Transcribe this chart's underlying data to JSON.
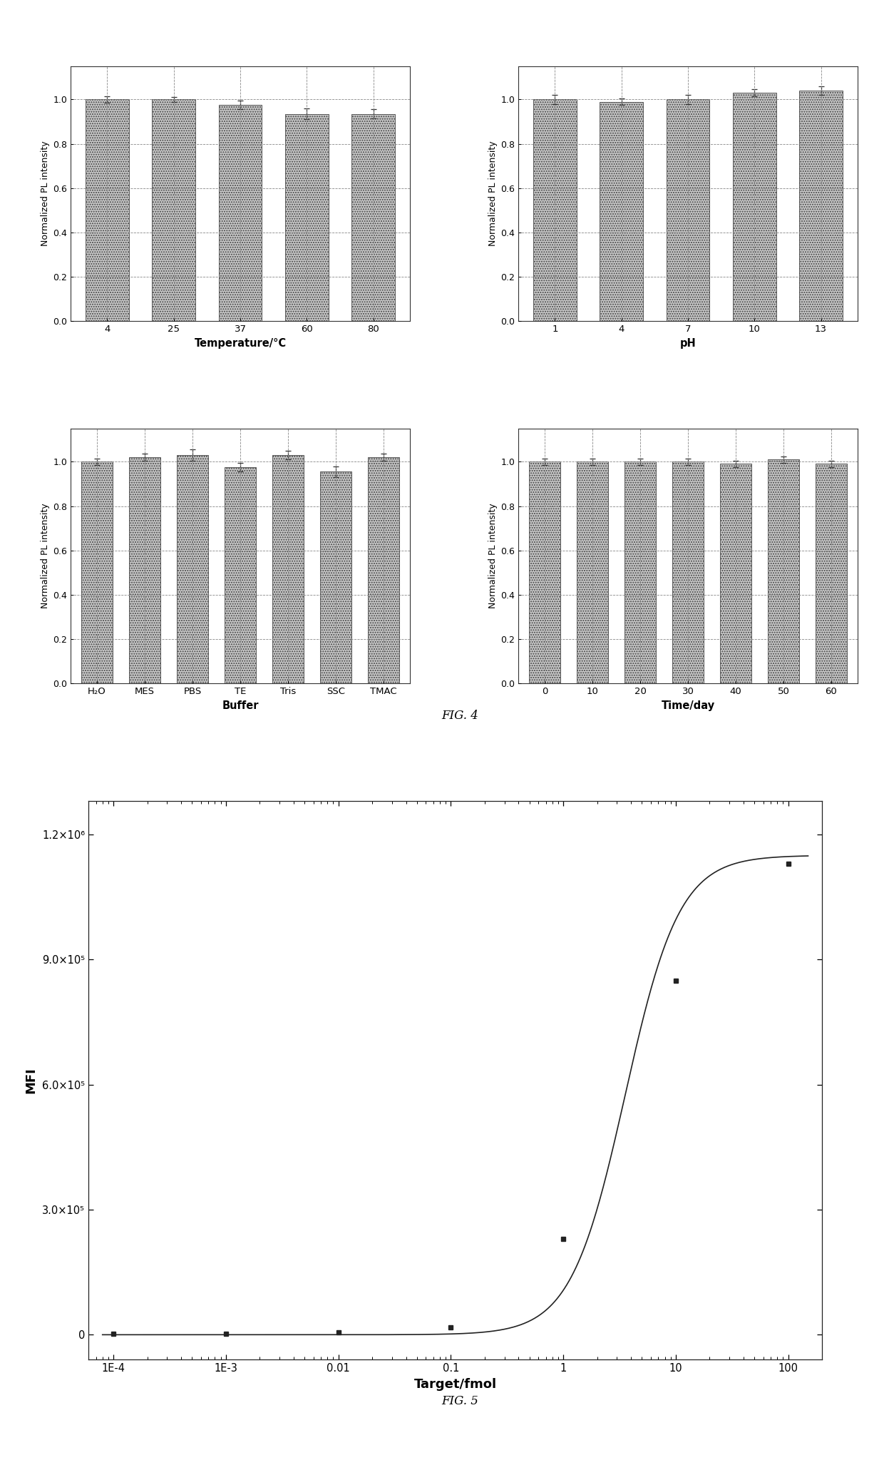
{
  "fig4_title": "FIG. 4",
  "fig5_title": "FIG. 5",
  "temp_categories": [
    "4",
    "25",
    "37",
    "60",
    "80"
  ],
  "temp_values": [
    1.0,
    1.0,
    0.975,
    0.935,
    0.935
  ],
  "temp_errors": [
    0.015,
    0.01,
    0.02,
    0.025,
    0.02
  ],
  "temp_xlabel": "Temperature/°C",
  "temp_ylabel": "Normalized PL intensity",
  "ph_categories": [
    "1",
    "4",
    "7",
    "10",
    "13"
  ],
  "ph_values": [
    1.0,
    0.99,
    1.0,
    1.03,
    1.04
  ],
  "ph_errors": [
    0.02,
    0.015,
    0.02,
    0.015,
    0.02
  ],
  "ph_xlabel": "pH",
  "ph_ylabel": "Normalized PL intensity",
  "buf_categories": [
    "H₂O",
    "MES",
    "PBS",
    "TE",
    "Tris",
    "SSC",
    "TMAC"
  ],
  "buf_values": [
    1.0,
    1.02,
    1.03,
    0.975,
    1.03,
    0.955,
    1.02
  ],
  "buf_errors": [
    0.015,
    0.015,
    0.025,
    0.02,
    0.02,
    0.025,
    0.015
  ],
  "buf_xlabel": "Buffer",
  "buf_ylabel": "Normalized PL intensity",
  "time_categories": [
    "0",
    "10",
    "20",
    "30",
    "40",
    "50",
    "60"
  ],
  "time_values": [
    1.0,
    1.0,
    1.0,
    1.0,
    0.99,
    1.01,
    0.99
  ],
  "time_errors": [
    0.015,
    0.015,
    0.015,
    0.015,
    0.015,
    0.015,
    0.015
  ],
  "time_xlabel": "Time/day",
  "time_ylabel": "Normalized PL intensity",
  "bar_color": "#c8c8c8",
  "bar_edgecolor": "#444444",
  "bar_hatch": ".....",
  "fig5_x": [
    0.0001,
    0.001,
    0.01,
    0.1,
    1,
    10,
    100
  ],
  "fig5_y": [
    2000,
    3000,
    5000,
    18000,
    230000,
    850000,
    1130000
  ],
  "fig5_xlabel": "Target/fmol",
  "fig5_ylabel": "MFI",
  "fig5_yticks": [
    0,
    300000,
    600000,
    900000,
    1200000
  ],
  "fig5_ytick_labels": [
    "0",
    "3.0×10⁵",
    "6.0×10⁵",
    "9.0×10⁵",
    "1.2×10⁶"
  ],
  "fig5_line_color": "#222222",
  "fig5_marker": "s",
  "fig5_marker_color": "#222222",
  "fig5_sigmoid_min": 0,
  "fig5_sigmoid_max": 1150000,
  "fig5_sigmoid_ec50_log": 0.55,
  "fig5_sigmoid_slope": 1.8
}
